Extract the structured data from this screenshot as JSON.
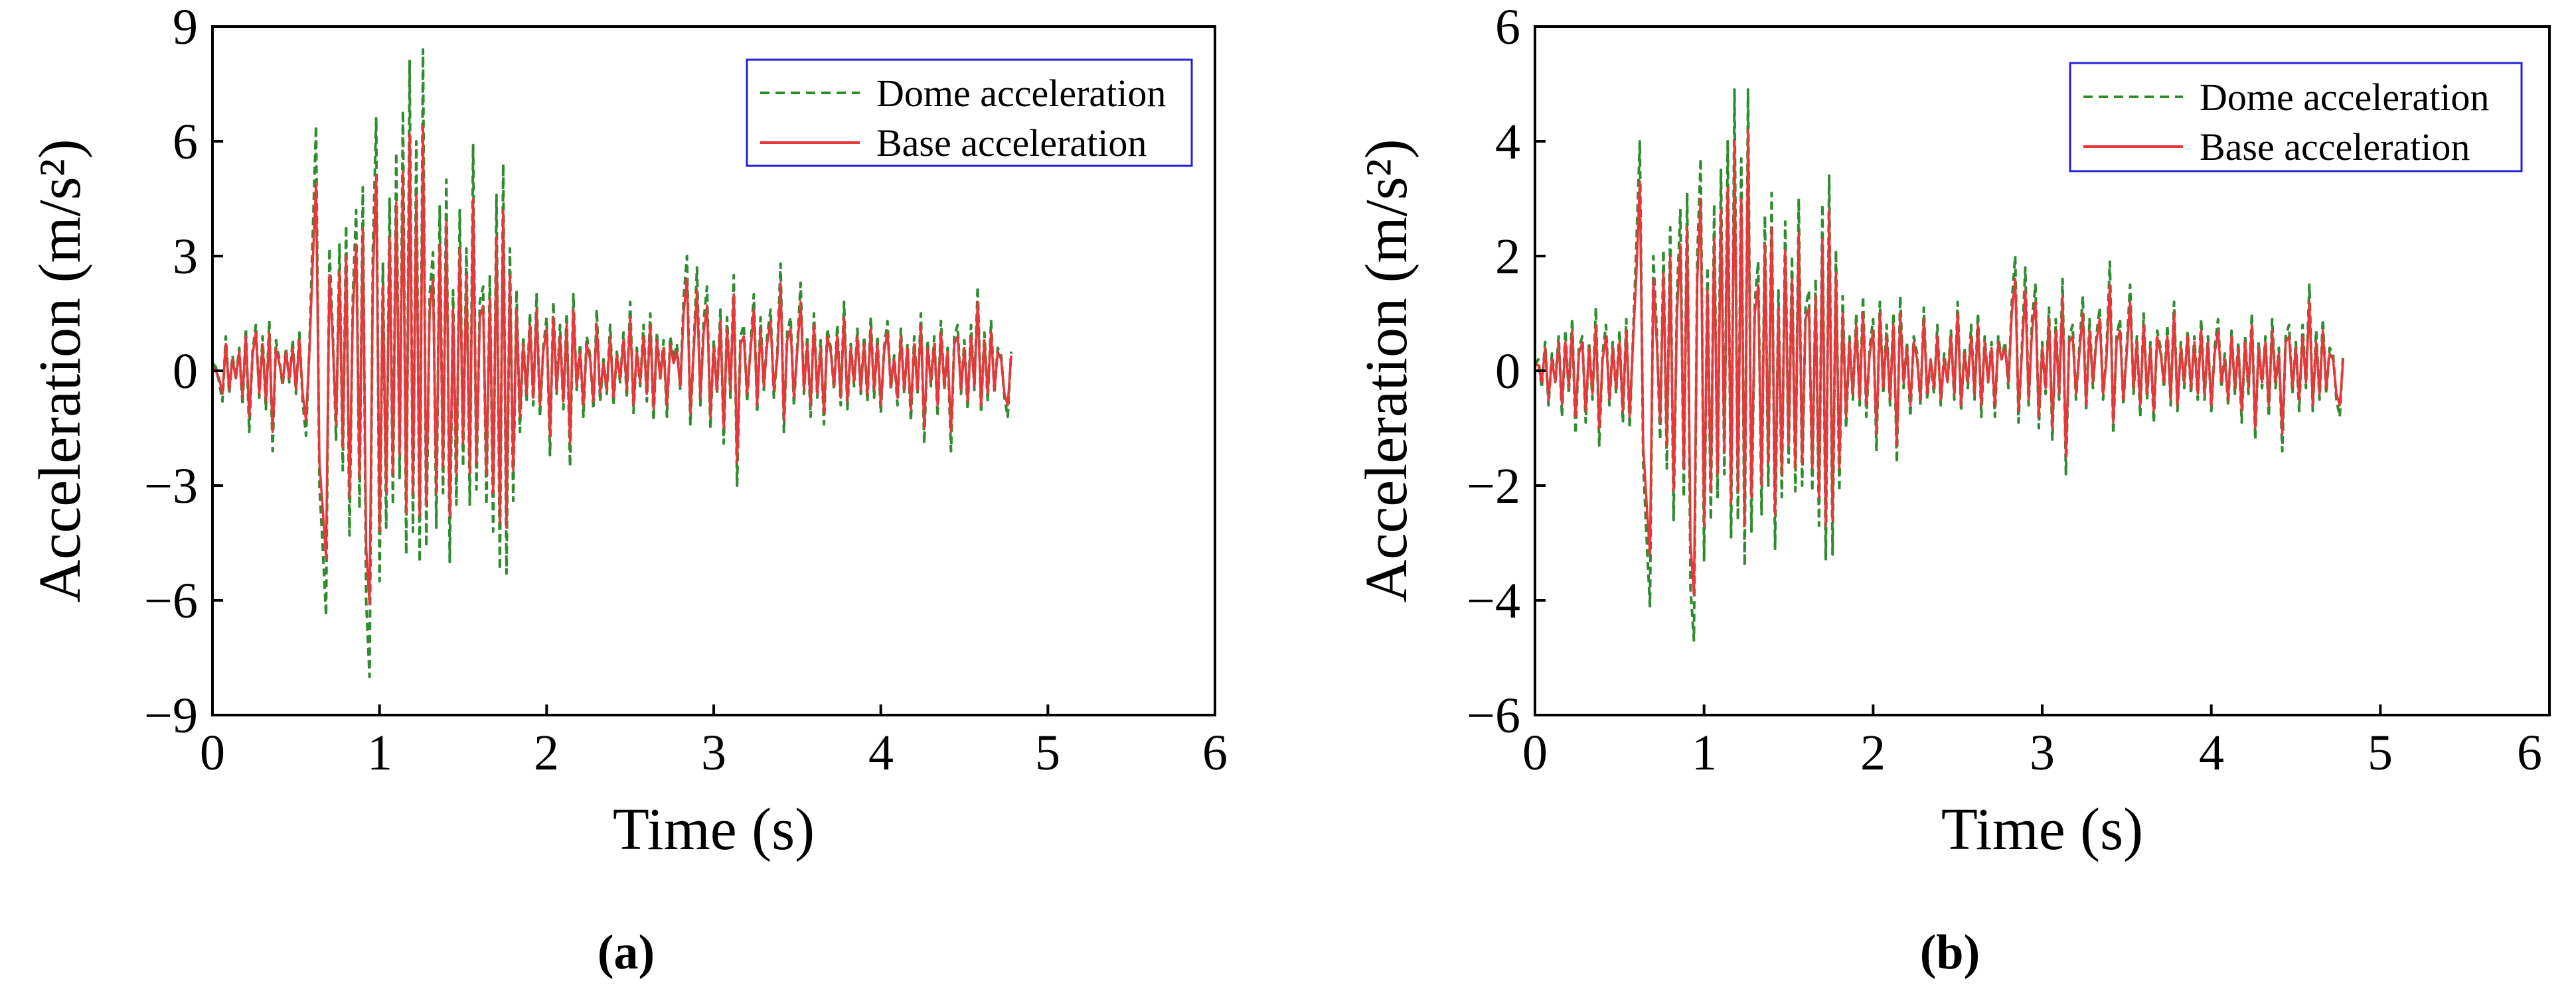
{
  "figure": {
    "panel_labels": [
      "(a)",
      "(b)"
    ]
  },
  "chart_data": [
    {
      "type": "line",
      "panel": "(a)",
      "title": "",
      "xlabel": "Time (s)",
      "ylabel": "Acceleration (m/s²)",
      "xlim": [
        0,
        6
      ],
      "ylim": [
        -9,
        9
      ],
      "x_ticks": [
        "0",
        "1",
        "2",
        "3",
        "4",
        "5",
        "6"
      ],
      "y_ticks": [
        "−9",
        "−6",
        "−3",
        "0",
        "3",
        "6",
        "9"
      ],
      "grid": false,
      "legend": {
        "position": "top-right",
        "entries": [
          "Dome acceleration",
          "Base acceleration"
        ]
      },
      "colors": {
        "dome": "#2e8b2e",
        "base": "#e8363a",
        "legend_border": "#2222dd"
      },
      "sample_interval": 0.02,
      "series": [
        {
          "name": "Dome acceleration",
          "style": "dashed",
          "color": "#2e8b2e",
          "start_time": 0.0,
          "values": [
            0.2,
            0.1,
            -0.3,
            -0.8,
            0.9,
            -0.6,
            0.4,
            -0.2,
            0.6,
            -0.9,
            1.1,
            -1.6,
            0.5,
            1.2,
            -0.7,
            0.9,
            -1.0,
            1.3,
            -2.1,
            0.8,
            0.3,
            -0.4,
            0.6,
            -0.3,
            0.8,
            -0.6,
            1.0,
            -0.8,
            -1.7,
            0.6,
            3.5,
            6.4,
            -3.0,
            -4.6,
            -6.4,
            3.2,
            1.0,
            -1.8,
            3.3,
            -2.6,
            3.8,
            -4.3,
            1.9,
            4.2,
            -3.6,
            4.8,
            -6.0,
            -8.0,
            3.1,
            6.6,
            -5.5,
            2.8,
            -4.1,
            4.5,
            -3.5,
            5.7,
            -2.8,
            6.8,
            -4.8,
            8.1,
            -4.2,
            6.0,
            -5.0,
            8.4,
            -4.6,
            2.0,
            3.1,
            -4.1,
            4.3,
            -3.2,
            5.0,
            -5.0,
            2.1,
            -3.5,
            4.2,
            -2.5,
            3.2,
            -3.5,
            5.9,
            -3.1,
            1.8,
            2.2,
            -3.5,
            2.5,
            -4.2,
            4.6,
            -5.2,
            5.4,
            -5.3,
            3.2,
            -3.4,
            2.1,
            -1.6,
            0.9,
            -0.8,
            1.5,
            -0.9,
            2.0,
            -1.2,
            0.6,
            1.4,
            -2.2,
            1.8,
            -0.6,
            1.2,
            -1.0,
            1.5,
            -2.5,
            2.0,
            -0.5,
            0.7,
            -1.2,
            0.9,
            0.4,
            -1.0,
            1.6,
            -0.8,
            0.3,
            -0.6,
            1.2,
            -0.9,
            0.5,
            -0.3,
            1.0,
            -0.7,
            1.8,
            -1.1,
            0.6,
            -0.4,
            1.2,
            -0.8,
            1.5,
            -1.3,
            1.0,
            -0.2,
            0.8,
            -1.2,
            0.9,
            0.3,
            0.7,
            -0.5,
            1.9,
            3.0,
            -1.4,
            0.6,
            2.7,
            -0.9,
            1.3,
            2.2,
            -1.5,
            0.8,
            -0.6,
            1.6,
            -1.9,
            1.4,
            -0.7,
            2.5,
            -3.0,
            0.9,
            1.2,
            -0.8,
            0.6,
            2.0,
            -1.1,
            1.4,
            -0.5,
            0.9,
            1.6,
            -0.7,
            0.4,
            2.8,
            -1.6,
            1.0,
            1.4,
            -0.9,
            0.6,
            2.3,
            -0.6,
            0.9,
            -1.2,
            1.5,
            -0.7,
            0.8,
            -1.4,
            1.1,
            0.6,
            -0.5,
            1.2,
            -0.9,
            1.8,
            -1.0,
            0.7,
            -0.4,
            1.1,
            -0.6,
            0.9,
            -0.8,
            1.4,
            -0.7,
            0.9,
            -1.1,
            0.6,
            1.3,
            -0.5,
            0.4,
            -0.9,
            1.1,
            -0.6,
            0.7,
            -1.3,
            0.9,
            -0.6,
            1.5,
            -1.9,
            0.8,
            -0.4,
            0.9,
            -1.2,
            1.3,
            -0.5,
            0.6,
            -2.1,
            0.9,
            1.2,
            -0.6,
            0.8,
            -1.0,
            1.2,
            -0.5,
            2.2,
            -1.1,
            1.0,
            -0.8,
            1.3,
            -0.6,
            0.6,
            0.4,
            -0.7,
            -1.2,
            0.5
          ]
        },
        {
          "name": "Base acceleration",
          "style": "solid",
          "color": "#e8363a",
          "start_time": 0.0,
          "values": [
            0.1,
            0.0,
            -0.2,
            -0.6,
            0.7,
            -0.5,
            0.3,
            -0.2,
            0.5,
            -0.7,
            0.9,
            -1.2,
            0.4,
            1.0,
            -0.6,
            0.7,
            -0.8,
            1.0,
            -1.6,
            0.6,
            0.2,
            -0.3,
            0.5,
            -0.2,
            0.6,
            -0.5,
            0.8,
            -0.6,
            -1.3,
            0.5,
            2.8,
            4.9,
            -2.4,
            -3.6,
            -4.9,
            2.5,
            0.8,
            -1.4,
            2.6,
            -2.0,
            3.0,
            -3.3,
            1.5,
            3.3,
            -2.8,
            3.7,
            -4.6,
            -6.1,
            2.4,
            5.1,
            -4.2,
            2.2,
            -3.2,
            3.5,
            -2.7,
            4.4,
            -2.2,
            5.2,
            -3.7,
            6.2,
            -3.2,
            4.6,
            -3.8,
            6.4,
            -3.5,
            1.6,
            2.4,
            -3.2,
            3.3,
            -2.5,
            3.9,
            -3.8,
            1.6,
            -2.7,
            3.2,
            -1.9,
            2.5,
            -2.7,
            4.5,
            -2.4,
            1.4,
            1.7,
            -2.7,
            1.9,
            -3.2,
            3.5,
            -4.0,
            4.2,
            -4.1,
            2.5,
            -2.6,
            1.6,
            -1.2,
            0.7,
            -0.6,
            1.2,
            -0.7,
            1.6,
            -0.9,
            0.5,
            1.1,
            -1.7,
            1.4,
            -0.5,
            0.9,
            -0.8,
            1.2,
            -1.9,
            1.6,
            -0.4,
            0.5,
            -0.9,
            0.7,
            0.3,
            -0.8,
            1.2,
            -0.6,
            0.2,
            -0.5,
            0.9,
            -0.7,
            0.4,
            -0.2,
            0.8,
            -0.5,
            1.4,
            -0.9,
            0.5,
            -0.3,
            0.9,
            -0.6,
            1.2,
            -1.0,
            0.8,
            -0.2,
            0.6,
            -0.9,
            0.7,
            0.2,
            0.5,
            -0.4,
            1.5,
            2.4,
            -1.1,
            0.5,
            2.1,
            -0.7,
            1.0,
            1.7,
            -1.2,
            0.6,
            -0.5,
            1.3,
            -1.5,
            1.1,
            -0.5,
            2.0,
            -2.4,
            0.7,
            0.9,
            -0.6,
            0.5,
            1.6,
            -0.9,
            1.1,
            -0.4,
            0.7,
            1.3,
            -0.5,
            0.3,
            2.3,
            -1.3,
            0.8,
            1.1,
            -0.7,
            0.5,
            1.8,
            -0.5,
            0.7,
            -0.9,
            1.2,
            -0.6,
            0.6,
            -1.1,
            0.9,
            0.5,
            -0.4,
            0.9,
            -0.7,
            1.4,
            -0.8,
            0.6,
            -0.3,
            0.9,
            -0.5,
            0.7,
            -0.6,
            1.1,
            -0.5,
            0.7,
            -0.9,
            0.5,
            1.0,
            -0.4,
            0.3,
            -0.7,
            0.9,
            -0.5,
            0.6,
            -1.0,
            0.7,
            -0.5,
            1.2,
            -1.5,
            0.6,
            -0.3,
            0.7,
            -0.9,
            1.0,
            -0.4,
            0.5,
            -1.6,
            0.7,
            0.9,
            -0.5,
            0.6,
            -0.8,
            0.9,
            -0.4,
            1.8,
            -0.9,
            0.8,
            -0.6,
            1.0,
            -0.5,
            0.5,
            0.3,
            -0.6,
            -0.9,
            0.4
          ]
        }
      ]
    },
    {
      "type": "line",
      "panel": "(b)",
      "title": "",
      "xlabel": "Time (s)",
      "ylabel": "Acceleration (m/s²)",
      "xlim": [
        0,
        6
      ],
      "ylim": [
        -6,
        6
      ],
      "x_ticks": [
        "0",
        "1",
        "2",
        "3",
        "4",
        "5",
        "6"
      ],
      "y_ticks": [
        "−6",
        "−4",
        "−2",
        "0",
        "2",
        "4",
        "6"
      ],
      "grid": false,
      "legend": {
        "position": "top-right",
        "entries": [
          "Dome acceleration",
          "Base acceleration"
        ]
      },
      "colors": {
        "dome": "#2e8b2e",
        "base": "#e8363a",
        "legend_border": "#2222dd"
      },
      "sample_interval": 0.02,
      "series": [
        {
          "name": "Dome acceleration",
          "style": "dashed",
          "color": "#2e8b2e",
          "start_time": 0.0,
          "values": [
            0.1,
            0.2,
            -0.3,
            0.5,
            -0.6,
            0.3,
            -0.2,
            0.6,
            -0.8,
            0.7,
            -0.4,
            0.9,
            -1.1,
            0.4,
            0.6,
            -0.9,
            0.5,
            -0.5,
            1.1,
            -1.3,
            0.3,
            0.8,
            -0.6,
            0.5,
            -0.4,
            0.7,
            -0.9,
            0.9,
            -1.0,
            0.6,
            2.2,
            4.0,
            -1.6,
            -2.9,
            -4.1,
            2.0,
            0.7,
            -1.2,
            2.1,
            -1.7,
            2.5,
            -2.6,
            1.3,
            2.8,
            -2.2,
            3.1,
            -3.8,
            -4.7,
            2.0,
            3.7,
            -3.3,
            1.8,
            -2.6,
            2.9,
            -2.2,
            3.5,
            -1.8,
            4.0,
            -2.9,
            4.9,
            -2.6,
            3.7,
            -3.4,
            4.9,
            -2.8,
            1.2,
            1.9,
            -2.5,
            2.7,
            -2.0,
            3.1,
            -3.1,
            1.4,
            -2.2,
            2.6,
            -1.6,
            2.0,
            -2.1,
            3.0,
            -2.0,
            1.1,
            1.4,
            -2.1,
            1.6,
            -2.7,
            2.9,
            -3.3,
            3.4,
            -3.2,
            2.1,
            -2.1,
            1.3,
            -1.0,
            0.6,
            -0.5,
            1.0,
            -0.6,
            1.3,
            -0.8,
            0.4,
            0.9,
            -1.4,
            1.2,
            -0.4,
            0.8,
            -0.6,
            1.0,
            -1.6,
            1.3,
            -0.3,
            0.5,
            -0.8,
            0.6,
            0.3,
            -0.6,
            1.1,
            -0.5,
            0.2,
            -0.4,
            0.8,
            -0.6,
            0.3,
            -0.2,
            0.7,
            -0.5,
            1.2,
            -0.7,
            0.4,
            -0.3,
            0.8,
            -0.5,
            1.0,
            -0.8,
            0.6,
            -0.2,
            0.5,
            -0.8,
            0.6,
            0.2,
            0.5,
            -0.3,
            1.2,
            2.0,
            -0.9,
            0.4,
            1.8,
            -0.6,
            0.9,
            1.5,
            -1.0,
            0.5,
            -0.4,
            1.1,
            -1.2,
            0.9,
            -0.5,
            1.6,
            -1.8,
            0.6,
            0.8,
            -0.5,
            0.4,
            1.3,
            -0.7,
            0.9,
            -0.3,
            0.6,
            1.1,
            -0.5,
            0.3,
            1.9,
            -1.1,
            0.6,
            0.9,
            -0.6,
            0.4,
            1.5,
            -0.4,
            0.6,
            -0.8,
            1.0,
            -0.5,
            0.5,
            -0.9,
            0.7,
            0.4,
            -0.3,
            0.8,
            -0.6,
            1.2,
            -0.7,
            0.5,
            -0.3,
            0.7,
            -0.4,
            0.6,
            -0.5,
            0.9,
            -0.5,
            0.6,
            -0.7,
            0.4,
            0.9,
            -0.3,
            0.3,
            -0.6,
            0.7,
            -0.4,
            0.5,
            -0.9,
            0.6,
            -0.4,
            1.0,
            -1.2,
            0.5,
            -0.3,
            0.6,
            -0.8,
            0.9,
            -0.3,
            0.4,
            -1.4,
            0.6,
            0.8,
            -0.4,
            0.5,
            -0.7,
            0.8,
            -0.3,
            1.5,
            -0.7,
            0.7,
            -0.5,
            0.9,
            -0.4,
            0.4,
            0.3,
            -0.5,
            -0.8,
            0.3
          ]
        },
        {
          "name": "Base acceleration",
          "style": "solid",
          "color": "#e8363a",
          "start_time": 0.0,
          "values": [
            0.1,
            0.1,
            -0.2,
            0.4,
            -0.5,
            0.2,
            -0.2,
            0.5,
            -0.6,
            0.5,
            -0.3,
            0.7,
            -0.8,
            0.3,
            0.5,
            -0.7,
            0.4,
            -0.4,
            0.8,
            -1.0,
            0.2,
            0.6,
            -0.5,
            0.4,
            -0.3,
            0.5,
            -0.7,
            0.7,
            -0.8,
            0.5,
            1.7,
            3.3,
            -1.3,
            -2.3,
            -3.2,
            1.6,
            0.5,
            -0.9,
            1.7,
            -1.3,
            2.0,
            -2.1,
            1.0,
            2.2,
            -1.7,
            2.5,
            -3.0,
            -3.9,
            1.6,
            3.0,
            -2.7,
            1.4,
            -2.1,
            2.3,
            -1.8,
            2.8,
            -1.4,
            3.2,
            -2.3,
            4.0,
            -2.1,
            3.0,
            -2.7,
            4.2,
            -2.2,
            1.0,
            1.5,
            -2.0,
            2.2,
            -1.6,
            2.5,
            -2.5,
            1.1,
            -1.8,
            2.1,
            -1.3,
            1.6,
            -1.7,
            2.4,
            -1.6,
            0.9,
            1.1,
            -1.7,
            1.3,
            -2.2,
            2.3,
            -2.7,
            2.8,
            -2.6,
            1.7,
            -1.7,
            1.0,
            -0.8,
            0.5,
            -0.4,
            0.8,
            -0.5,
            1.0,
            -0.6,
            0.3,
            0.7,
            -1.1,
            1.0,
            -0.3,
            0.6,
            -0.5,
            0.8,
            -1.3,
            1.0,
            -0.2,
            0.4,
            -0.6,
            0.5,
            0.2,
            -0.5,
            0.9,
            -0.4,
            0.2,
            -0.3,
            0.6,
            -0.5,
            0.2,
            -0.2,
            0.6,
            -0.4,
            1.0,
            -0.6,
            0.3,
            -0.2,
            0.6,
            -0.4,
            0.8,
            -0.6,
            0.5,
            -0.2,
            0.4,
            -0.6,
            0.5,
            0.2,
            0.4,
            -0.2,
            1.0,
            1.6,
            -0.7,
            0.3,
            1.4,
            -0.5,
            0.7,
            1.2,
            -0.8,
            0.4,
            -0.3,
            0.9,
            -1.0,
            0.7,
            -0.4,
            1.3,
            -1.5,
            0.5,
            0.6,
            -0.4,
            0.3,
            1.0,
            -0.6,
            0.7,
            -0.2,
            0.5,
            0.9,
            -0.4,
            0.2,
            1.5,
            -0.9,
            0.5,
            0.7,
            -0.5,
            0.3,
            1.2,
            -0.3,
            0.5,
            -0.6,
            0.8,
            -0.4,
            0.4,
            -0.7,
            0.6,
            0.3,
            -0.2,
            0.6,
            -0.5,
            1.0,
            -0.6,
            0.4,
            -0.2,
            0.6,
            -0.3,
            0.5,
            -0.4,
            0.7,
            -0.4,
            0.5,
            -0.6,
            0.3,
            0.7,
            -0.2,
            0.2,
            -0.5,
            0.6,
            -0.3,
            0.4,
            -0.7,
            0.5,
            -0.3,
            0.8,
            -1.0,
            0.4,
            -0.2,
            0.5,
            -0.6,
            0.7,
            -0.2,
            0.3,
            -1.1,
            0.5,
            0.6,
            -0.3,
            0.4,
            -0.5,
            0.6,
            -0.2,
            1.2,
            -0.6,
            0.5,
            -0.4,
            0.7,
            -0.3,
            0.3,
            0.2,
            -0.4,
            -0.6,
            0.2
          ]
        }
      ]
    }
  ]
}
